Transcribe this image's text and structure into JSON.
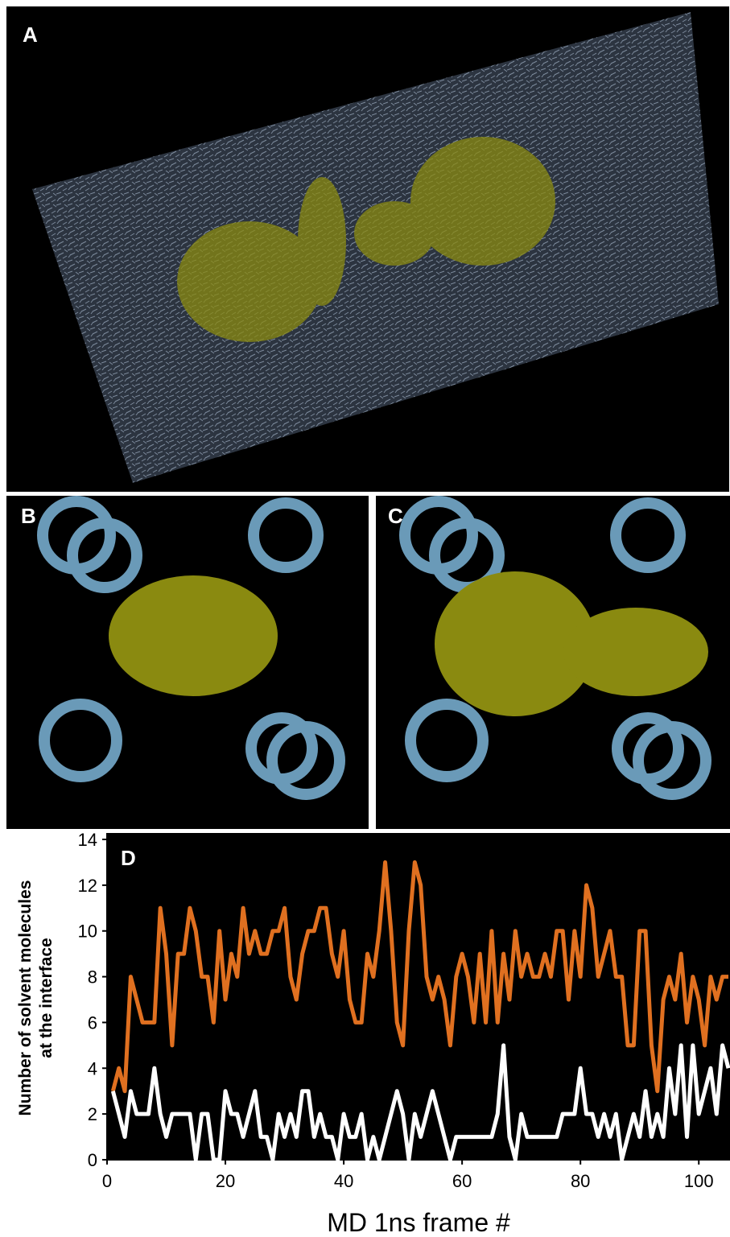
{
  "panel_labels": [
    "A",
    "B",
    "C"
  ],
  "chart_data": {
    "type": "line",
    "panel_label": "D",
    "xlabel": "MD  1ns frame  #",
    "ylabel": [
      "Number of solvent molecules",
      "at the interface"
    ],
    "x": [
      1,
      2,
      3,
      4,
      5,
      6,
      7,
      8,
      9,
      10,
      11,
      12,
      13,
      14,
      15,
      16,
      17,
      18,
      19,
      20,
      21,
      22,
      23,
      24,
      25,
      26,
      27,
      28,
      29,
      30,
      31,
      32,
      33,
      34,
      35,
      36,
      37,
      38,
      39,
      40,
      41,
      42,
      43,
      44,
      45,
      46,
      47,
      48,
      49,
      50,
      51,
      52,
      53,
      54,
      55,
      56,
      57,
      58,
      59,
      60,
      61,
      62,
      63,
      64,
      65,
      66,
      67,
      68,
      69,
      70,
      71,
      72,
      73,
      74,
      75,
      76,
      77,
      78,
      79,
      80,
      81,
      82,
      83,
      84,
      85,
      86,
      87,
      88,
      89,
      90,
      91,
      92,
      93,
      94,
      95,
      96,
      97,
      98,
      99,
      100,
      101,
      102,
      103,
      104,
      105
    ],
    "series": [
      {
        "color": "#e07020",
        "values": [
          3,
          4,
          3,
          8,
          7,
          6,
          6,
          6,
          11,
          9,
          5,
          9,
          9,
          11,
          10,
          8,
          8,
          6,
          10,
          7,
          9,
          8,
          11,
          9,
          10,
          9,
          9,
          10,
          10,
          11,
          8,
          7,
          9,
          10,
          10,
          11,
          11,
          9,
          8,
          10,
          7,
          6,
          6,
          9,
          8,
          10,
          13,
          10,
          6,
          5,
          10,
          13,
          12,
          8,
          7,
          8,
          7,
          5,
          8,
          9,
          8,
          6,
          9,
          6,
          10,
          6,
          9,
          7,
          10,
          8,
          9,
          8,
          8,
          9,
          8,
          10,
          10,
          7,
          10,
          8,
          12,
          11,
          8,
          9,
          10,
          8,
          8,
          5,
          5,
          10,
          10,
          5,
          3,
          7,
          8,
          7,
          9,
          6,
          8,
          7,
          5,
          8,
          7,
          8,
          8
        ]
      },
      {
        "color": "#ffffff",
        "values": [
          3,
          2,
          1,
          3,
          2,
          2,
          2,
          4,
          2,
          1,
          2,
          2,
          2,
          2,
          0,
          2,
          2,
          0,
          0,
          3,
          2,
          2,
          1,
          2,
          3,
          1,
          1,
          0,
          2,
          1,
          2,
          1,
          3,
          3,
          1,
          2,
          1,
          1,
          0,
          2,
          1,
          1,
          2,
          0,
          1,
          0,
          1,
          2,
          3,
          2,
          0,
          2,
          1,
          2,
          3,
          2,
          1,
          0,
          1,
          1,
          1,
          1,
          1,
          1,
          1,
          2,
          5,
          1,
          0,
          2,
          1,
          1,
          1,
          1,
          1,
          1,
          2,
          2,
          2,
          4,
          2,
          2,
          1,
          2,
          1,
          2,
          0,
          1,
          2,
          1,
          3,
          1,
          2,
          1,
          4,
          2,
          5,
          1,
          5,
          2,
          3,
          4,
          2,
          5,
          4
        ]
      }
    ],
    "xlim": [
      0,
      105
    ],
    "xticks": [
      0,
      20,
      40,
      60,
      80,
      100
    ],
    "ylim": [
      0,
      14
    ],
    "yticks": [
      0,
      2,
      4,
      6,
      8,
      10,
      12,
      14
    ]
  }
}
